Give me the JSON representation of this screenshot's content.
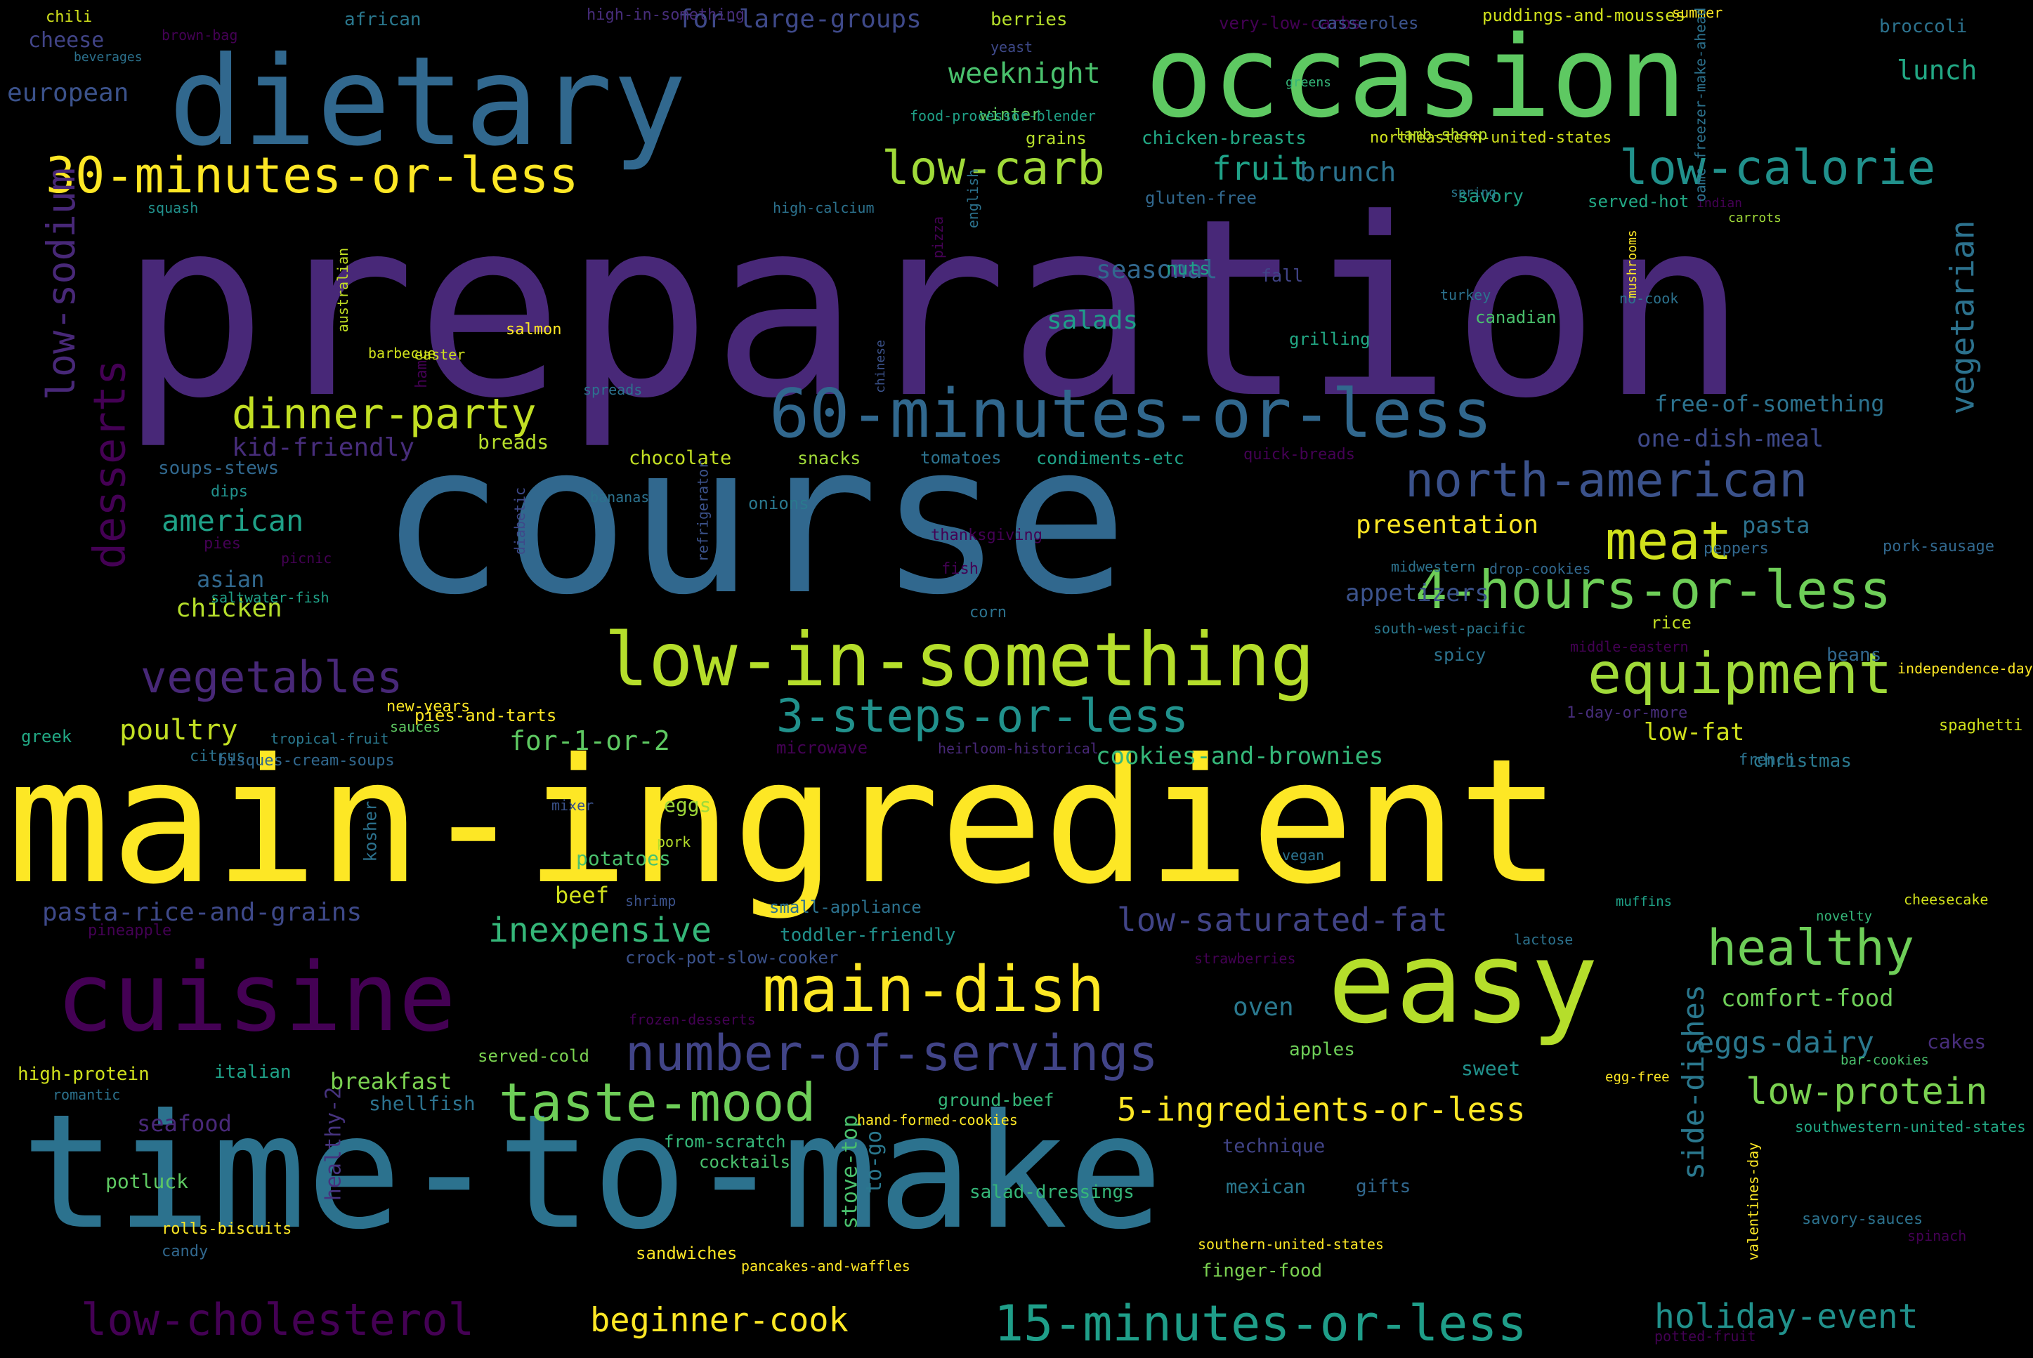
{
  "words": [
    {
      "text": "preparation",
      "color": "#482878"
    },
    {
      "text": "course",
      "color": "#31688e"
    },
    {
      "text": "main-ingredient",
      "color": "#fde725"
    },
    {
      "text": "time-to-make",
      "color": "#2c728e"
    },
    {
      "text": "dietary",
      "color": "#31688e"
    },
    {
      "text": "occasion",
      "color": "#5ec962"
    },
    {
      "text": "cuisine",
      "color": "#440154"
    },
    {
      "text": "easy",
      "color": "#b5de2b"
    },
    {
      "text": "low-in-something",
      "color": "#b5de2b"
    },
    {
      "text": "60-minutes-or-less",
      "color": "#31688e"
    },
    {
      "text": "30-minutes-or-less",
      "color": "#fde725"
    },
    {
      "text": "4-hours-or-less",
      "color": "#6ece58"
    },
    {
      "text": "main-dish",
      "color": "#fde725"
    },
    {
      "text": "number-of-servings",
      "color": "#414487"
    },
    {
      "text": "taste-mood",
      "color": "#6ece58"
    },
    {
      "text": "low-calorie",
      "color": "#21918c"
    },
    {
      "text": "north-american",
      "color": "#3b528b"
    },
    {
      "text": "equipment",
      "color": "#a0da39"
    },
    {
      "text": "vegetables",
      "color": "#482878"
    },
    {
      "text": "3-steps-or-less",
      "color": "#21918c"
    },
    {
      "text": "low-carb",
      "color": "#a0da39"
    },
    {
      "text": "meat",
      "color": "#d0e11c"
    },
    {
      "text": "healthy",
      "color": "#6ece58"
    },
    {
      "text": "low-cholesterol",
      "color": "#440154"
    },
    {
      "text": "15-minutes-or-less",
      "color": "#1f9e89"
    },
    {
      "text": "dinner-party",
      "color": "#c2df23"
    },
    {
      "text": "low-protein",
      "color": "#7ad151"
    },
    {
      "text": "5-ingredients-or-less",
      "color": "#fde725"
    },
    {
      "text": "low-saturated-fat",
      "color": "#414487"
    },
    {
      "text": "holiday-event",
      "color": "#21918c"
    },
    {
      "text": "beginner-cook",
      "color": "#fde725"
    },
    {
      "text": "inexpensive",
      "color": "#35b779"
    },
    {
      "text": "eggs-dairy",
      "color": "#2a788e"
    },
    {
      "text": "low-sodium",
      "color": "#482878"
    },
    {
      "text": "desserts",
      "color": "#440154"
    },
    {
      "text": "vegetarian",
      "color": "#2c728e"
    },
    {
      "text": "side-dishes",
      "color": "#2a788e"
    },
    {
      "text": "weeknight",
      "color": "#4ac16d"
    },
    {
      "text": "for-large-groups",
      "color": "#3e4989"
    },
    {
      "text": "fruit",
      "color": "#1fa187"
    },
    {
      "text": "brunch",
      "color": "#2c728e"
    },
    {
      "text": "lunch",
      "color": "#22a884"
    },
    {
      "text": "european",
      "color": "#3b528b"
    },
    {
      "text": "seasonal",
      "color": "#31688e"
    },
    {
      "text": "salads",
      "color": "#1f9e89"
    },
    {
      "text": "kid-friendly",
      "color": "#472d7b"
    },
    {
      "text": "american",
      "color": "#1fa187"
    },
    {
      "text": "presentation",
      "color": "#fde725"
    },
    {
      "text": "one-dish-meal",
      "color": "#3e4989"
    },
    {
      "text": "free-of-something",
      "color": "#2c728e"
    },
    {
      "text": "appetizers",
      "color": "#3b528b"
    },
    {
      "text": "poultry",
      "color": "#c2df23"
    },
    {
      "text": "for-1-or-2",
      "color": "#5ec962"
    },
    {
      "text": "cookies-and-brownies",
      "color": "#35b779"
    },
    {
      "text": "low-fat",
      "color": "#d0e11c"
    },
    {
      "text": "pasta-rice-and-grains",
      "color": "#3e4989"
    },
    {
      "text": "healthy-2",
      "color": "#46337e"
    },
    {
      "text": "pasta",
      "color": "#2c728e"
    },
    {
      "text": "oven",
      "color": "#2a788e"
    },
    {
      "text": "comfort-food",
      "color": "#6ece58"
    },
    {
      "text": "breakfast",
      "color": "#7ad151"
    },
    {
      "text": "chicken",
      "color": "#b5de2b"
    },
    {
      "text": "asian",
      "color": "#31688e"
    },
    {
      "text": "beef",
      "color": "#d0e11c"
    },
    {
      "text": "potatoes",
      "color": "#4ac16d"
    },
    {
      "text": "eggs",
      "color": "#a0da39"
    },
    {
      "text": "seafood",
      "color": "#482878"
    },
    {
      "text": "shellfish",
      "color": "#2c728e"
    },
    {
      "text": "potluck",
      "color": "#5ec962"
    },
    {
      "text": "cheese",
      "color": "#414487"
    },
    {
      "text": "chocolate",
      "color": "#c2df23"
    },
    {
      "text": "breads",
      "color": "#b5de2b"
    },
    {
      "text": "soups-stews",
      "color": "#31688e"
    },
    {
      "text": "stove-top",
      "color": "#4ac16d"
    },
    {
      "text": "to-go",
      "color": "#2a788e"
    },
    {
      "text": "sweet",
      "color": "#21918c"
    },
    {
      "text": "cakes",
      "color": "#472d7b"
    },
    {
      "text": "mexican",
      "color": "#2a788e"
    },
    {
      "text": "technique",
      "color": "#414487"
    },
    {
      "text": "finger-food",
      "color": "#7ad151"
    },
    {
      "text": "sandwiches",
      "color": "#fde725"
    },
    {
      "text": "grains",
      "color": "#b5de2b"
    },
    {
      "text": "winter",
      "color": "#5ec962"
    },
    {
      "text": "chicken-breasts",
      "color": "#22a884"
    },
    {
      "text": "gluten-free",
      "color": "#31688e"
    },
    {
      "text": "savory",
      "color": "#1fa187"
    },
    {
      "text": "served-hot",
      "color": "#22a884"
    },
    {
      "text": "nuts",
      "color": "#1fa187"
    },
    {
      "text": "fall",
      "color": "#414487"
    },
    {
      "text": "canadian",
      "color": "#4ac16d"
    },
    {
      "text": "grilling",
      "color": "#22a884"
    },
    {
      "text": "condiments-etc",
      "color": "#1fa187"
    },
    {
      "text": "tomatoes",
      "color": "#2c728e"
    },
    {
      "text": "snacks",
      "color": "#a0da39"
    },
    {
      "text": "onions",
      "color": "#2a788e"
    },
    {
      "text": "quick-breads",
      "color": "#440154"
    },
    {
      "text": "spicy",
      "color": "#2c728e"
    },
    {
      "text": "rice",
      "color": "#c2df23"
    },
    {
      "text": "beans",
      "color": "#31688e"
    },
    {
      "text": "christmas",
      "color": "#2a788e"
    },
    {
      "text": "italian",
      "color": "#1fa187"
    },
    {
      "text": "high-protein",
      "color": "#d0e11c"
    },
    {
      "text": "served-cold",
      "color": "#7ad151"
    },
    {
      "text": "toddler-friendly",
      "color": "#21918c"
    },
    {
      "text": "small-appliance",
      "color": "#2c728e"
    },
    {
      "text": "crock-pot-slow-cooker",
      "color": "#3b528b"
    },
    {
      "text": "ground-beef",
      "color": "#35b779"
    },
    {
      "text": "hand-formed-cookies",
      "color": "#fde725"
    },
    {
      "text": "southwestern-united-states",
      "color": "#22a884"
    },
    {
      "text": "bar-cookies",
      "color": "#4ac16d"
    },
    {
      "text": "egg-free",
      "color": "#fde725"
    },
    {
      "text": "novelty",
      "color": "#35b779"
    },
    {
      "text": "muffins",
      "color": "#1fa187"
    },
    {
      "text": "cheesecake",
      "color": "#d0e11c"
    },
    {
      "text": "vegan",
      "color": "#2c728e"
    },
    {
      "text": "apples",
      "color": "#6ece58"
    },
    {
      "text": "gifts",
      "color": "#31688e"
    },
    {
      "text": "salad-dressings",
      "color": "#35b779"
    },
    {
      "text": "southern-united-states",
      "color": "#fde725"
    },
    {
      "text": "pies-and-tarts",
      "color": "#fde725"
    },
    {
      "text": "new-years",
      "color": "#fde725"
    },
    {
      "text": "sauces",
      "color": "#5ec962"
    },
    {
      "text": "citrus",
      "color": "#2c728e"
    },
    {
      "text": "tropical-fruit",
      "color": "#2a788e"
    },
    {
      "text": "microwave",
      "color": "#440154"
    },
    {
      "text": "heirloom-historical",
      "color": "#482878"
    },
    {
      "text": "bisques-cream-soups",
      "color": "#31688e"
    },
    {
      "text": "1-day-or-more",
      "color": "#472d7b"
    },
    {
      "text": "french",
      "color": "#2c728e"
    },
    {
      "text": "spaghetti",
      "color": "#d0e11c"
    },
    {
      "text": "independence-day",
      "color": "#fde725"
    },
    {
      "text": "middle-eastern",
      "color": "#440154"
    },
    {
      "text": "south-west-pacific",
      "color": "#2a788e"
    },
    {
      "text": "drop-cookies",
      "color": "#31688e"
    },
    {
      "text": "midwestern",
      "color": "#2c728e"
    },
    {
      "text": "peppers",
      "color": "#31688e"
    },
    {
      "text": "pork-sausage",
      "color": "#31688e"
    },
    {
      "text": "thanksgiving",
      "color": "#440154"
    },
    {
      "text": "fish",
      "color": "#440154"
    },
    {
      "text": "corn",
      "color": "#2c728e"
    },
    {
      "text": "bananas",
      "color": "#2c728e"
    },
    {
      "text": "refrigerator",
      "color": "#3b528b"
    },
    {
      "text": "diabetic",
      "color": "#3e4989"
    },
    {
      "text": "pies",
      "color": "#440154"
    },
    {
      "text": "picnic",
      "color": "#440154"
    },
    {
      "text": "saltwater-fish",
      "color": "#1fa187"
    },
    {
      "text": "dips",
      "color": "#21918c"
    },
    {
      "text": "greek",
      "color": "#22a884"
    },
    {
      "text": "mixer",
      "color": "#3b528b"
    },
    {
      "text": "pork",
      "color": "#b5de2b"
    },
    {
      "text": "kosher",
      "color": "#2c728e"
    },
    {
      "text": "shrimp",
      "color": "#3b528b"
    },
    {
      "text": "pineapple",
      "color": "#440154"
    },
    {
      "text": "frozen-desserts",
      "color": "#440154"
    },
    {
      "text": "romantic",
      "color": "#2c728e"
    },
    {
      "text": "from-scratch",
      "color": "#35b779"
    },
    {
      "text": "cocktails",
      "color": "#4ac16d"
    },
    {
      "text": "rolls-biscuits",
      "color": "#fde725"
    },
    {
      "text": "candy",
      "color": "#31688e"
    },
    {
      "text": "strawberries",
      "color": "#440154"
    },
    {
      "text": "lactose",
      "color": "#2c728e"
    },
    {
      "text": "savory-sauces",
      "color": "#2c728e"
    },
    {
      "text": "spinach",
      "color": "#440154"
    },
    {
      "text": "valentines-day",
      "color": "#fde725"
    },
    {
      "text": "potted-fruit",
      "color": "#440154"
    },
    {
      "text": "pancakes-and-waffles",
      "color": "#fde725"
    },
    {
      "text": "chili",
      "color": "#d0e11c"
    },
    {
      "text": "brown-bag",
      "color": "#440154"
    },
    {
      "text": "beverages",
      "color": "#2c728e"
    },
    {
      "text": "african",
      "color": "#2a788e"
    },
    {
      "text": "high-in-something",
      "color": "#472d7b"
    },
    {
      "text": "berries",
      "color": "#b5de2b"
    },
    {
      "text": "very-low-carbs",
      "color": "#440154"
    },
    {
      "text": "casseroles",
      "color": "#3b528b"
    },
    {
      "text": "puddings-and-mousses",
      "color": "#d0e11c"
    },
    {
      "text": "summer",
      "color": "#fde725"
    },
    {
      "text": "broccoli",
      "color": "#2c728e"
    },
    {
      "text": "yeast",
      "color": "#3e4989"
    },
    {
      "text": "greens",
      "color": "#35b779"
    },
    {
      "text": "food-processor-blender",
      "color": "#1fa187"
    },
    {
      "text": "northeastern-united-states",
      "color": "#d0e11c"
    },
    {
      "text": "lamb-sheep",
      "color": "#b5de2b"
    },
    {
      "text": "spring",
      "color": "#2a788e"
    },
    {
      "text": "indian",
      "color": "#440154"
    },
    {
      "text": "oamc-freezer-make-ahead",
      "color": "#2c728e"
    },
    {
      "text": "squash",
      "color": "#21918c"
    },
    {
      "text": "high-calcium",
      "color": "#2c728e"
    },
    {
      "text": "english",
      "color": "#2c728e"
    },
    {
      "text": "pizza",
      "color": "#440154"
    },
    {
      "text": "carrots",
      "color": "#a0da39"
    },
    {
      "text": "turkey",
      "color": "#2c728e"
    },
    {
      "text": "no-cook",
      "color": "#2c728e"
    },
    {
      "text": "mushrooms",
      "color": "#fde725"
    },
    {
      "text": "australian",
      "color": "#c2df23"
    },
    {
      "text": "salmon",
      "color": "#fde725"
    },
    {
      "text": "barbecue",
      "color": "#d0e11c"
    },
    {
      "text": "easter",
      "color": "#d0e11c"
    },
    {
      "text": "spreads",
      "color": "#2c728e"
    },
    {
      "text": "chinese",
      "color": "#3b528b"
    },
    {
      "text": "ham",
      "color": "#440154"
    }
  ]
}
